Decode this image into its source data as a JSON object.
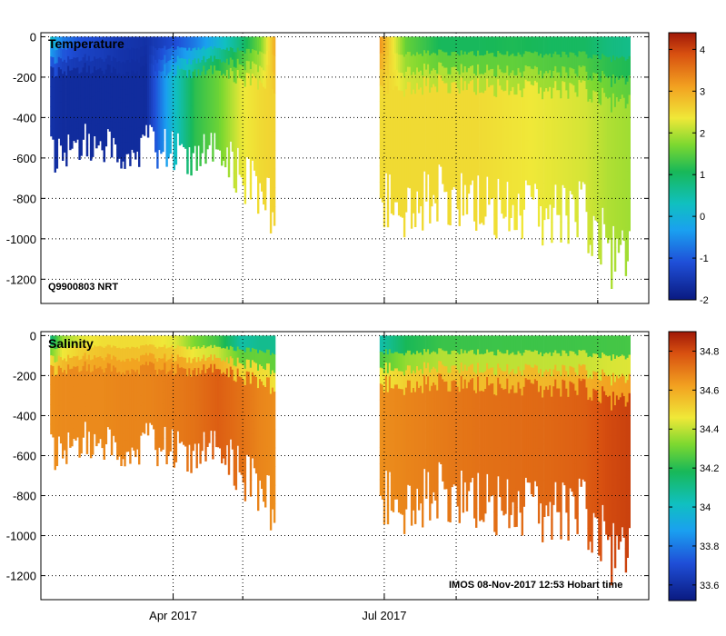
{
  "chart_data": [
    {
      "type": "heatmap",
      "title": "Temperature",
      "annotation": "Q9900803 NRT",
      "ylabel": "",
      "ylim": [
        -1320,
        20
      ],
      "yticks": [
        0,
        -200,
        -400,
        -600,
        -800,
        -1000,
        -1200
      ],
      "x_tick_labels": [
        "Apr 2017",
        "Jul 2017"
      ],
      "colorbar": {
        "min": -2,
        "max": 4.4,
        "ticks": [
          4,
          3,
          2,
          1,
          0,
          -1,
          -2
        ]
      },
      "profiles": [
        {
          "date": "2017-02-07",
          "max_depth": 600,
          "surface_value": 0.5,
          "deep_value": -1.6
        },
        {
          "date": "2017-02-12",
          "max_depth": 720,
          "surface_value": -0.5,
          "deep_value": -1.7
        },
        {
          "date": "2017-02-20",
          "max_depth": 570,
          "surface_value": -1.0,
          "deep_value": -1.7
        },
        {
          "date": "2017-03-01",
          "max_depth": 600,
          "surface_value": -1.2,
          "deep_value": -1.7
        },
        {
          "date": "2017-03-10",
          "max_depth": 640,
          "surface_value": -1.5,
          "deep_value": -1.7
        },
        {
          "date": "2017-03-20",
          "max_depth": 600,
          "surface_value": -1.6,
          "deep_value": -1.7
        },
        {
          "date": "2017-04-01",
          "max_depth": 650,
          "surface_value": -1.4,
          "deep_value": 0.2
        },
        {
          "date": "2017-04-10",
          "max_depth": 660,
          "surface_value": -1.0,
          "deep_value": 1.2
        },
        {
          "date": "2017-04-20",
          "max_depth": 640,
          "surface_value": -0.2,
          "deep_value": 1.6
        },
        {
          "date": "2017-04-30",
          "max_depth": 800,
          "surface_value": 0.6,
          "deep_value": 2.3
        },
        {
          "date": "2017-05-08",
          "max_depth": 850,
          "surface_value": 1.5,
          "deep_value": 2.5
        },
        {
          "date": "2017-05-15",
          "max_depth": 1000,
          "surface_value": 3.2,
          "deep_value": 2.6
        },
        {
          "date": "2017-06-29",
          "max_depth": 940,
          "surface_value": 3.3,
          "deep_value": 2.5
        },
        {
          "date": "2017-07-10",
          "max_depth": 960,
          "surface_value": 1.4,
          "deep_value": 2.5
        },
        {
          "date": "2017-07-25",
          "max_depth": 880,
          "surface_value": 0.8,
          "deep_value": 2.5
        },
        {
          "date": "2017-08-10",
          "max_depth": 940,
          "surface_value": 0.8,
          "deep_value": 2.5
        },
        {
          "date": "2017-08-25",
          "max_depth": 1000,
          "surface_value": 0.9,
          "deep_value": 2.4
        },
        {
          "date": "2017-09-10",
          "max_depth": 980,
          "surface_value": 0.8,
          "deep_value": 2.3
        },
        {
          "date": "2017-09-25",
          "max_depth": 1000,
          "surface_value": 0.8,
          "deep_value": 2.2
        },
        {
          "date": "2017-10-05",
          "max_depth": 1200,
          "surface_value": 0.6,
          "deep_value": 2.0
        },
        {
          "date": "2017-10-15",
          "max_depth": 1200,
          "surface_value": 0.5,
          "deep_value": 1.9
        }
      ]
    },
    {
      "type": "heatmap",
      "title": "Salinity",
      "annotation": "IMOS 08-Nov-2017 12:53 Hobart time",
      "ylabel": "",
      "ylim": [
        -1320,
        20
      ],
      "yticks": [
        0,
        -200,
        -400,
        -600,
        -800,
        -1000,
        -1200
      ],
      "x_tick_labels": [
        "Apr 2017",
        "Jul 2017"
      ],
      "colorbar": {
        "min": 33.52,
        "max": 34.9,
        "ticks": [
          34.8,
          34.6,
          34.4,
          34.2,
          34,
          33.8,
          33.6
        ]
      },
      "profiles": [
        {
          "date": "2017-02-07",
          "max_depth": 600,
          "surface_value": 34.05,
          "deep_value": 34.66
        },
        {
          "date": "2017-02-12",
          "max_depth": 720,
          "surface_value": 34.3,
          "deep_value": 34.67
        },
        {
          "date": "2017-02-20",
          "max_depth": 570,
          "surface_value": 34.4,
          "deep_value": 34.67
        },
        {
          "date": "2017-03-01",
          "max_depth": 600,
          "surface_value": 34.45,
          "deep_value": 34.67
        },
        {
          "date": "2017-03-10",
          "max_depth": 640,
          "surface_value": 34.45,
          "deep_value": 34.68
        },
        {
          "date": "2017-03-20",
          "max_depth": 600,
          "surface_value": 34.45,
          "deep_value": 34.68
        },
        {
          "date": "2017-04-01",
          "max_depth": 650,
          "surface_value": 34.4,
          "deep_value": 34.7
        },
        {
          "date": "2017-04-10",
          "max_depth": 660,
          "surface_value": 34.25,
          "deep_value": 34.72
        },
        {
          "date": "2017-04-20",
          "max_depth": 640,
          "surface_value": 34.15,
          "deep_value": 34.76
        },
        {
          "date": "2017-04-30",
          "max_depth": 800,
          "surface_value": 33.95,
          "deep_value": 34.72
        },
        {
          "date": "2017-05-08",
          "max_depth": 850,
          "surface_value": 34.0,
          "deep_value": 34.68
        },
        {
          "date": "2017-05-15",
          "max_depth": 1000,
          "surface_value": 34.0,
          "deep_value": 34.66
        },
        {
          "date": "2017-06-29",
          "max_depth": 940,
          "surface_value": 33.95,
          "deep_value": 34.66
        },
        {
          "date": "2017-07-10",
          "max_depth": 960,
          "surface_value": 34.1,
          "deep_value": 34.68
        },
        {
          "date": "2017-07-25",
          "max_depth": 880,
          "surface_value": 34.15,
          "deep_value": 34.7
        },
        {
          "date": "2017-08-10",
          "max_depth": 940,
          "surface_value": 34.15,
          "deep_value": 34.72
        },
        {
          "date": "2017-08-25",
          "max_depth": 1000,
          "surface_value": 34.15,
          "deep_value": 34.73
        },
        {
          "date": "2017-09-10",
          "max_depth": 980,
          "surface_value": 34.15,
          "deep_value": 34.74
        },
        {
          "date": "2017-09-25",
          "max_depth": 1000,
          "surface_value": 34.15,
          "deep_value": 34.76
        },
        {
          "date": "2017-10-05",
          "max_depth": 1200,
          "surface_value": 34.15,
          "deep_value": 34.8
        },
        {
          "date": "2017-10-15",
          "max_depth": 1200,
          "surface_value": 34.15,
          "deep_value": 34.82
        }
      ]
    }
  ]
}
